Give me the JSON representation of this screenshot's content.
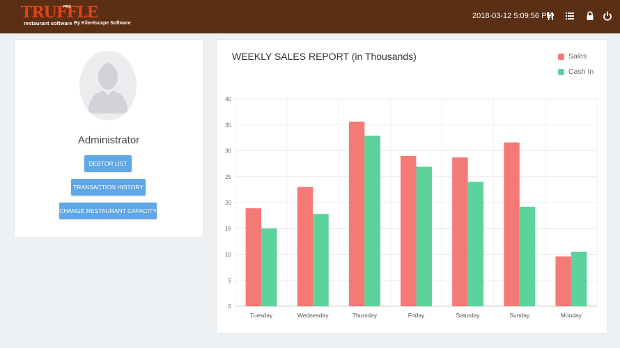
{
  "header": {
    "logo_text": "TRUFFLE",
    "logo_pro": "PRO",
    "logo_subtitle": "restaurant software",
    "logo_by": "By Klientscape Software",
    "datetime": "2018-03-12 5:09:56 PM",
    "icons": [
      "fork-knife-icon",
      "menu-list-icon",
      "lock-icon",
      "power-icon"
    ]
  },
  "profile": {
    "name": "Administrator",
    "buttons": {
      "debtor_list": "DEBTOR LIST",
      "transaction_history": "TRANSACTION HISTORY",
      "change_capacity": "CHANGE RESTAURANT CAPACITY"
    }
  },
  "colors": {
    "header_bg": "#5a2f14",
    "logo_accent": "#e0421b",
    "button_blue": "#5fa7e6",
    "sales": "#f57a76",
    "cash_in": "#5dd39c"
  },
  "chart_data": {
    "type": "bar",
    "title": "WEEKLY SALES REPORT (in Thousands)",
    "categories": [
      "Tuesday",
      "Wednesday",
      "Thursday",
      "Friday",
      "Saturday",
      "Sunday",
      "Monday"
    ],
    "series": [
      {
        "name": "Sales",
        "values": [
          18.9,
          23.0,
          35.6,
          29.0,
          28.7,
          31.6,
          9.6
        ]
      },
      {
        "name": "Cash In",
        "values": [
          15.0,
          17.8,
          32.9,
          26.9,
          24.0,
          19.2,
          10.5
        ]
      }
    ],
    "ylim": [
      0,
      40
    ],
    "yticks": [
      0,
      5,
      10,
      15,
      20,
      25,
      30,
      35,
      40
    ],
    "legend_position": "top-right",
    "grid": true
  }
}
